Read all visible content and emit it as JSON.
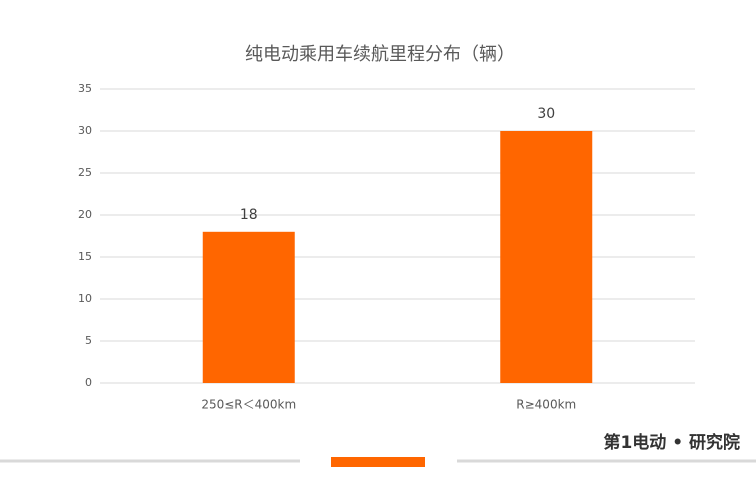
{
  "chart_data": {
    "type": "bar",
    "title": "纯电动乘用车续航里程分布（辆）",
    "categories": [
      "250≤R＜400km",
      "R≥400km"
    ],
    "values": [
      18,
      30
    ],
    "color": "#ff6600",
    "ylim": [
      0,
      35
    ],
    "yticks": [
      0,
      5,
      10,
      15,
      20,
      25,
      30,
      35
    ],
    "grid": true
  },
  "brand": "第1电动 • 研究院"
}
